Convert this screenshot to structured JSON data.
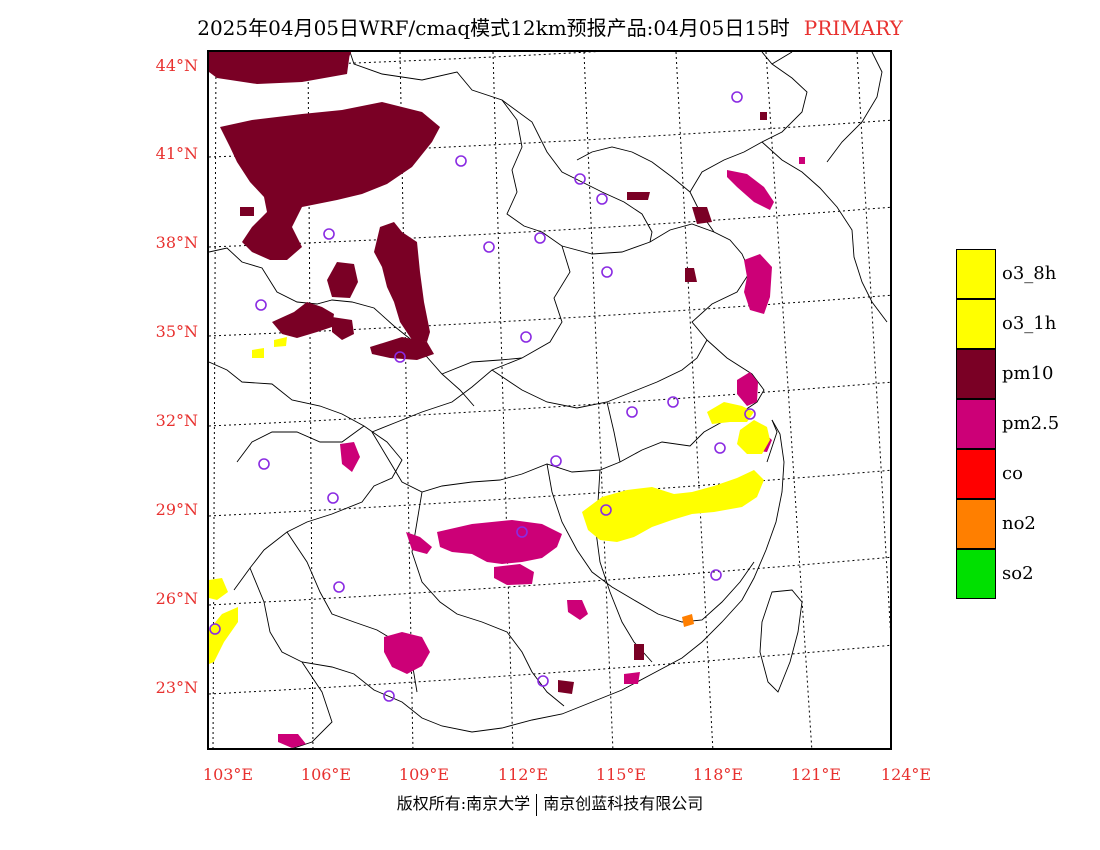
{
  "title": {
    "main": "2025年04月05日WRF/cmaq模式12km预报产品:04月05日15时",
    "tag": "PRIMARY"
  },
  "axes": {
    "lat_labels": [
      "44°N",
      "41°N",
      "38°N",
      "35°N",
      "32°N",
      "29°N",
      "26°N",
      "23°N"
    ],
    "lon_labels": [
      "103°E",
      "106°E",
      "109°E",
      "112°E",
      "115°E",
      "118°E",
      "121°E",
      "124°E"
    ]
  },
  "legend": [
    {
      "label": "o3_8h",
      "color": "#ffff00"
    },
    {
      "label": "o3_1h",
      "color": "#ffff00"
    },
    {
      "label": "pm10",
      "color": "#7a0025"
    },
    {
      "label": "pm2.5",
      "color": "#cc0077"
    },
    {
      "label": "co",
      "color": "#ff0000"
    },
    {
      "label": "no2",
      "color": "#ff7f00"
    },
    {
      "label": "so2",
      "color": "#00e000"
    }
  ],
  "footer": {
    "left": "版权所有:南京大学",
    "right": "南京创蓝科技有限公司"
  },
  "colors": {
    "pm10": "#7a0025",
    "pm25": "#cc0077",
    "o3": "#ffff00",
    "no2": "#ff7f00",
    "station": "#8a2be2",
    "label": "#e8312f"
  }
}
